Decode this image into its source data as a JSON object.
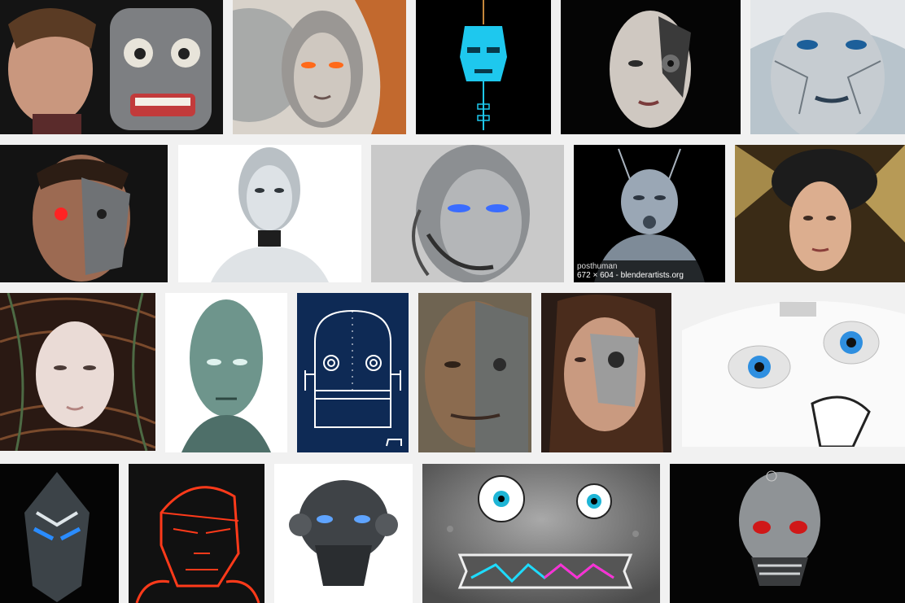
{
  "results": [
    {
      "name": "human-and-mechanical-face",
      "bg": "#151515"
    },
    {
      "name": "ornate-silver-cyborg-woman",
      "bg": "#d7d2cc"
    },
    {
      "name": "cyan-tiki-robot-mask",
      "bg": "#000000"
    },
    {
      "name": "cracked-porcelain-cyborg-face",
      "bg": "#050505"
    },
    {
      "name": "white-haired-android-woman",
      "bg": "#b9c6cf"
    },
    {
      "name": "man-with-red-robotic-eye",
      "bg": "#141414"
    },
    {
      "name": "white-humanoid-robot",
      "bg": "#ffffff"
    },
    {
      "name": "chrome-android-blue-eyes",
      "bg": "#c9c9c9"
    },
    {
      "name": "posthuman-chrome-bust",
      "bg": "#000000",
      "overlay": {
        "title": "posthuman",
        "info": "672 × 604 - blenderartists.org"
      }
    },
    {
      "name": "gold-cable-headed-woman",
      "bg": "#3a2c18"
    },
    {
      "name": "mask-in-wire-nest",
      "bg": "#2a1a14"
    },
    {
      "name": "green-alien-android",
      "bg": "#ffffff"
    },
    {
      "name": "line-art-robot-head",
      "bg": "#0e2a55"
    },
    {
      "name": "half-terminator-painting",
      "bg": "#6f6452"
    },
    {
      "name": "robotic-face-makeup-woman",
      "bg": "#2c1e17"
    },
    {
      "name": "cartoon-white-robot-blue-eyes",
      "bg": "#f0f0f0"
    },
    {
      "name": "blue-glowing-tribal-mask",
      "bg": "#050505"
    },
    {
      "name": "red-neon-wireframe-head",
      "bg": "#111111"
    },
    {
      "name": "mechanical-robot-helmet",
      "bg": "#ffffff"
    },
    {
      "name": "grey-robot-face-zigzag-mouth",
      "bg": "#6e6e6e"
    },
    {
      "name": "terminator-endoskeleton-skull",
      "bg": "#000000"
    }
  ]
}
